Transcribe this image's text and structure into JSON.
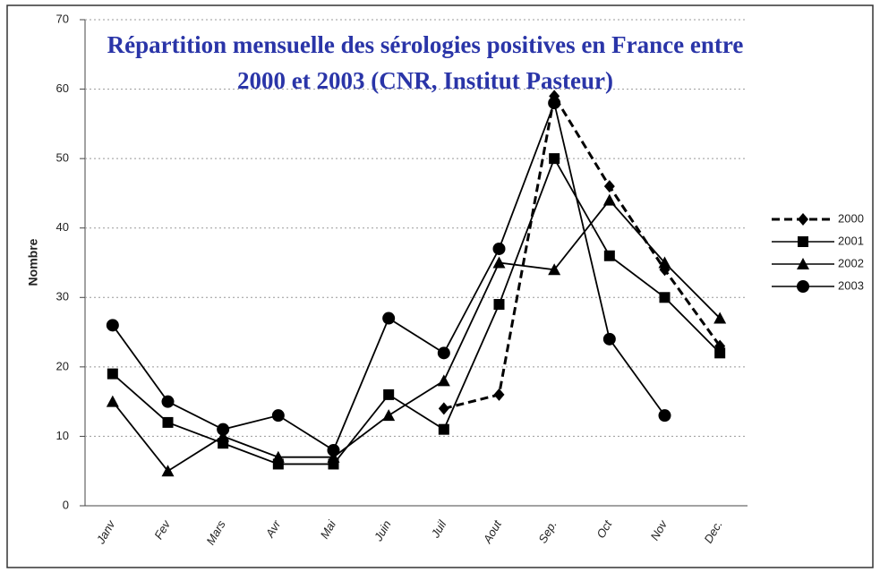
{
  "chart_data": {
    "type": "line",
    "title": "Répartition mensuelle des sérologies positives en France entre 2000 et 2003 (CNR, Institut Pasteur)",
    "y_label": "Nombre",
    "categories": [
      "Janv",
      "Fev",
      "Mars",
      "Avr",
      "Mai",
      "Juin",
      "Juil",
      "Aout",
      "Sep.",
      "Oct",
      "Nov",
      "Dec."
    ],
    "series": [
      {
        "name": "2000",
        "color": "#000000",
        "marker": "diamond",
        "linestyle": "dashed",
        "values": [
          null,
          null,
          null,
          null,
          null,
          null,
          14,
          16,
          59,
          46,
          34,
          23
        ]
      },
      {
        "name": "2001",
        "color": "#000000",
        "marker": "square",
        "linestyle": "solid",
        "values": [
          19,
          12,
          9,
          6,
          6,
          16,
          11,
          29,
          50,
          36,
          30,
          22
        ]
      },
      {
        "name": "2002",
        "color": "#000000",
        "marker": "triangle",
        "linestyle": "solid",
        "values": [
          15,
          5,
          10,
          7,
          7,
          13,
          18,
          35,
          34,
          44,
          35,
          27
        ]
      },
      {
        "name": "2003",
        "color": "#000000",
        "marker": "circle",
        "linestyle": "solid",
        "values": [
          26,
          15,
          11,
          13,
          8,
          27,
          22,
          37,
          58,
          24,
          13,
          null
        ]
      }
    ],
    "ylim": [
      0,
      70
    ],
    "yticks": [
      0,
      10,
      20,
      30,
      40,
      50,
      60,
      70
    ],
    "grid": true,
    "legend": "right"
  }
}
